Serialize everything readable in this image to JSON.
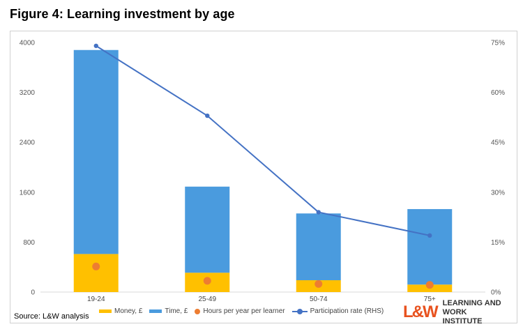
{
  "figure_title": "Figure 4: Learning investment by age",
  "source": "Source: L&W analysis",
  "logo": {
    "mark": "L&W",
    "line1": "LEARNING AND",
    "line2": "WORK INSTITUTE"
  },
  "colors": {
    "money": "#ffc000",
    "time": "#4a9bde",
    "hours": "#ed7d31",
    "participation": "#4472c4"
  },
  "chart_data": {
    "type": "bar",
    "title": "Figure 4: Learning investment by age",
    "stacked": true,
    "categories": [
      "19-24",
      "25-49",
      "50-74",
      "75+"
    ],
    "series": [
      {
        "name": "Money, £",
        "kind": "bar",
        "axis": "left",
        "values": [
          610,
          310,
          190,
          120
        ]
      },
      {
        "name": "Time, £",
        "kind": "bar",
        "axis": "left",
        "values": [
          3270,
          1380,
          1070,
          1210
        ]
      },
      {
        "name": "Hours per year per learner",
        "kind": "scatter",
        "axis": "left",
        "values": [
          410,
          180,
          130,
          115
        ]
      },
      {
        "name": "Participation rate (RHS)",
        "kind": "line",
        "axis": "right",
        "values": [
          74,
          53,
          24,
          17
        ]
      }
    ],
    "y_left": {
      "min": 0,
      "max": 4000,
      "ticks": [
        "0",
        "800",
        "1600",
        "2400",
        "3200",
        "4000"
      ]
    },
    "y_right": {
      "min": 0,
      "max": 75,
      "ticks": [
        "0%",
        "15%",
        "30%",
        "45%",
        "60%",
        "75%"
      ]
    },
    "legend": {
      "position": "bottom"
    },
    "grid": false
  }
}
